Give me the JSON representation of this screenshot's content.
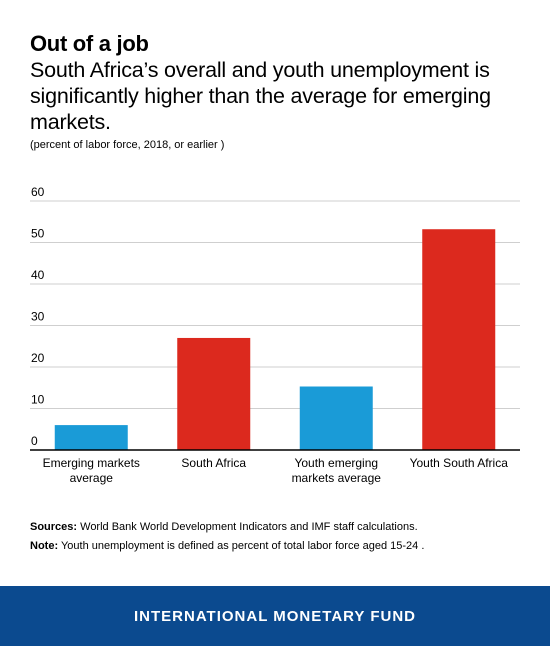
{
  "header": {
    "title": "Out of a job",
    "subtitle": "South Africa’s overall and youth unemployment is significantly higher than the average for emerging markets.",
    "unit_note": "(percent of labor force, 2018, or earlier )"
  },
  "chart_data": {
    "type": "bar",
    "categories": [
      [
        "Emerging markets",
        "average"
      ],
      [
        "South Africa"
      ],
      [
        "Youth emerging",
        "markets average"
      ],
      [
        "Youth South Africa"
      ]
    ],
    "values": [
      6,
      27,
      15.3,
      53.2
    ],
    "colors": [
      "#1a9bd7",
      "#dc291e",
      "#1a9bd7",
      "#dc291e"
    ],
    "ylim": [
      0,
      60
    ],
    "yticks": [
      0,
      10,
      20,
      30,
      40,
      50,
      60
    ],
    "grid": true
  },
  "footnotes": {
    "sources_label": "Sources:",
    "sources_text": " World Bank World Development Indicators and IMF staff calculations.",
    "note_label": "Note:",
    "note_text": " Youth unemployment is defined as percent of total labor force aged 15-24 ."
  },
  "footer": {
    "brand": "INTERNATIONAL MONETARY FUND",
    "background": "#0b4a8f"
  }
}
